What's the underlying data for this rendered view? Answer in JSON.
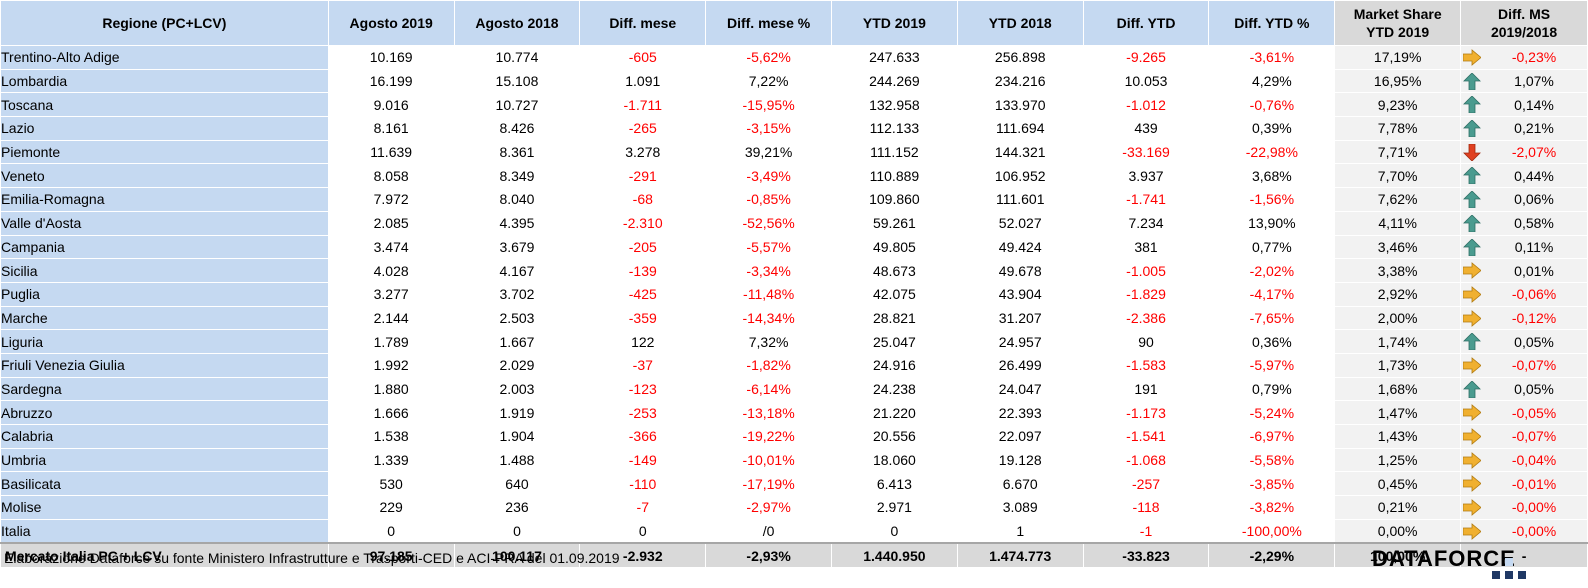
{
  "header": {
    "regione": "Regione (PC+LCV)",
    "agosto_2019": "Agosto 2019",
    "agosto_2018": "Agosto 2018",
    "diff_mese": "Diff. mese",
    "diff_mese_pct": "Diff. mese %",
    "ytd_2019": "YTD 2019",
    "ytd_2018": "YTD 2018",
    "diff_ytd": "Diff. YTD",
    "diff_ytd_pct": "Diff. YTD %",
    "market_share_line1": "Market Share",
    "market_share_line2": "YTD 2019",
    "diff_ms_line1": "Diff. MS",
    "diff_ms_line2": "2019/2018"
  },
  "rows": [
    {
      "region": "Trentino-Alto Adige",
      "ago19": "10.169",
      "ago18": "10.774",
      "diff_mese": "-605",
      "diff_mese_pct": "-5,62%",
      "ytd19": "247.633",
      "ytd18": "256.898",
      "diff_ytd": "-9.265",
      "diff_ytd_pct": "-3,61%",
      "ms": "17,19%",
      "arrow": "right",
      "diff_ms": "-0,23%"
    },
    {
      "region": "Lombardia",
      "ago19": "16.199",
      "ago18": "15.108",
      "diff_mese": "1.091",
      "diff_mese_pct": "7,22%",
      "ytd19": "244.269",
      "ytd18": "234.216",
      "diff_ytd": "10.053",
      "diff_ytd_pct": "4,29%",
      "ms": "16,95%",
      "arrow": "up",
      "diff_ms": "1,07%"
    },
    {
      "region": "Toscana",
      "ago19": "9.016",
      "ago18": "10.727",
      "diff_mese": "-1.711",
      "diff_mese_pct": "-15,95%",
      "ytd19": "132.958",
      "ytd18": "133.970",
      "diff_ytd": "-1.012",
      "diff_ytd_pct": "-0,76%",
      "ms": "9,23%",
      "arrow": "up",
      "diff_ms": "0,14%"
    },
    {
      "region": "Lazio",
      "ago19": "8.161",
      "ago18": "8.426",
      "diff_mese": "-265",
      "diff_mese_pct": "-3,15%",
      "ytd19": "112.133",
      "ytd18": "111.694",
      "diff_ytd": "439",
      "diff_ytd_pct": "0,39%",
      "ms": "7,78%",
      "arrow": "up",
      "diff_ms": "0,21%"
    },
    {
      "region": "Piemonte",
      "ago19": "11.639",
      "ago18": "8.361",
      "diff_mese": "3.278",
      "diff_mese_pct": "39,21%",
      "ytd19": "111.152",
      "ytd18": "144.321",
      "diff_ytd": "-33.169",
      "diff_ytd_pct": "-22,98%",
      "ms": "7,71%",
      "arrow": "down",
      "diff_ms": "-2,07%"
    },
    {
      "region": "Veneto",
      "ago19": "8.058",
      "ago18": "8.349",
      "diff_mese": "-291",
      "diff_mese_pct": "-3,49%",
      "ytd19": "110.889",
      "ytd18": "106.952",
      "diff_ytd": "3.937",
      "diff_ytd_pct": "3,68%",
      "ms": "7,70%",
      "arrow": "up",
      "diff_ms": "0,44%"
    },
    {
      "region": "Emilia-Romagna",
      "ago19": "7.972",
      "ago18": "8.040",
      "diff_mese": "-68",
      "diff_mese_pct": "-0,85%",
      "ytd19": "109.860",
      "ytd18": "111.601",
      "diff_ytd": "-1.741",
      "diff_ytd_pct": "-1,56%",
      "ms": "7,62%",
      "arrow": "up",
      "diff_ms": "0,06%"
    },
    {
      "region": "Valle d'Aosta",
      "ago19": "2.085",
      "ago18": "4.395",
      "diff_mese": "-2.310",
      "diff_mese_pct": "-52,56%",
      "ytd19": "59.261",
      "ytd18": "52.027",
      "diff_ytd": "7.234",
      "diff_ytd_pct": "13,90%",
      "ms": "4,11%",
      "arrow": "up",
      "diff_ms": "0,58%"
    },
    {
      "region": "Campania",
      "ago19": "3.474",
      "ago18": "3.679",
      "diff_mese": "-205",
      "diff_mese_pct": "-5,57%",
      "ytd19": "49.805",
      "ytd18": "49.424",
      "diff_ytd": "381",
      "diff_ytd_pct": "0,77%",
      "ms": "3,46%",
      "arrow": "up",
      "diff_ms": "0,11%"
    },
    {
      "region": "Sicilia",
      "ago19": "4.028",
      "ago18": "4.167",
      "diff_mese": "-139",
      "diff_mese_pct": "-3,34%",
      "ytd19": "48.673",
      "ytd18": "49.678",
      "diff_ytd": "-1.005",
      "diff_ytd_pct": "-2,02%",
      "ms": "3,38%",
      "arrow": "right",
      "diff_ms": "0,01%"
    },
    {
      "region": "Puglia",
      "ago19": "3.277",
      "ago18": "3.702",
      "diff_mese": "-425",
      "diff_mese_pct": "-11,48%",
      "ytd19": "42.075",
      "ytd18": "43.904",
      "diff_ytd": "-1.829",
      "diff_ytd_pct": "-4,17%",
      "ms": "2,92%",
      "arrow": "right",
      "diff_ms": "-0,06%"
    },
    {
      "region": "Marche",
      "ago19": "2.144",
      "ago18": "2.503",
      "diff_mese": "-359",
      "diff_mese_pct": "-14,34%",
      "ytd19": "28.821",
      "ytd18": "31.207",
      "diff_ytd": "-2.386",
      "diff_ytd_pct": "-7,65%",
      "ms": "2,00%",
      "arrow": "right",
      "diff_ms": "-0,12%"
    },
    {
      "region": "Liguria",
      "ago19": "1.789",
      "ago18": "1.667",
      "diff_mese": "122",
      "diff_mese_pct": "7,32%",
      "ytd19": "25.047",
      "ytd18": "24.957",
      "diff_ytd": "90",
      "diff_ytd_pct": "0,36%",
      "ms": "1,74%",
      "arrow": "up",
      "diff_ms": "0,05%"
    },
    {
      "region": "Friuli Venezia Giulia",
      "ago19": "1.992",
      "ago18": "2.029",
      "diff_mese": "-37",
      "diff_mese_pct": "-1,82%",
      "ytd19": "24.916",
      "ytd18": "26.499",
      "diff_ytd": "-1.583",
      "diff_ytd_pct": "-5,97%",
      "ms": "1,73%",
      "arrow": "right",
      "diff_ms": "-0,07%"
    },
    {
      "region": "Sardegna",
      "ago19": "1.880",
      "ago18": "2.003",
      "diff_mese": "-123",
      "diff_mese_pct": "-6,14%",
      "ytd19": "24.238",
      "ytd18": "24.047",
      "diff_ytd": "191",
      "diff_ytd_pct": "0,79%",
      "ms": "1,68%",
      "arrow": "up",
      "diff_ms": "0,05%"
    },
    {
      "region": "Abruzzo",
      "ago19": "1.666",
      "ago18": "1.919",
      "diff_mese": "-253",
      "diff_mese_pct": "-13,18%",
      "ytd19": "21.220",
      "ytd18": "22.393",
      "diff_ytd": "-1.173",
      "diff_ytd_pct": "-5,24%",
      "ms": "1,47%",
      "arrow": "right",
      "diff_ms": "-0,05%"
    },
    {
      "region": "Calabria",
      "ago19": "1.538",
      "ago18": "1.904",
      "diff_mese": "-366",
      "diff_mese_pct": "-19,22%",
      "ytd19": "20.556",
      "ytd18": "22.097",
      "diff_ytd": "-1.541",
      "diff_ytd_pct": "-6,97%",
      "ms": "1,43%",
      "arrow": "right",
      "diff_ms": "-0,07%"
    },
    {
      "region": "Umbria",
      "ago19": "1.339",
      "ago18": "1.488",
      "diff_mese": "-149",
      "diff_mese_pct": "-10,01%",
      "ytd19": "18.060",
      "ytd18": "19.128",
      "diff_ytd": "-1.068",
      "diff_ytd_pct": "-5,58%",
      "ms": "1,25%",
      "arrow": "right",
      "diff_ms": "-0,04%"
    },
    {
      "region": "Basilicata",
      "ago19": "530",
      "ago18": "640",
      "diff_mese": "-110",
      "diff_mese_pct": "-17,19%",
      "ytd19": "6.413",
      "ytd18": "6.670",
      "diff_ytd": "-257",
      "diff_ytd_pct": "-3,85%",
      "ms": "0,45%",
      "arrow": "right",
      "diff_ms": "-0,01%"
    },
    {
      "region": "Molise",
      "ago19": "229",
      "ago18": "236",
      "diff_mese": "-7",
      "diff_mese_pct": "-2,97%",
      "ytd19": "2.971",
      "ytd18": "3.089",
      "diff_ytd": "-118",
      "diff_ytd_pct": "-3,82%",
      "ms": "0,21%",
      "arrow": "right",
      "diff_ms": "-0,00%"
    },
    {
      "region": "Italia",
      "ago19": "0",
      "ago18": "0",
      "diff_mese": "0",
      "diff_mese_pct": "/0",
      "ytd19": "0",
      "ytd18": "1",
      "diff_ytd": "-1",
      "diff_ytd_pct": "-100,00%",
      "ms": "0,00%",
      "arrow": "right",
      "diff_ms": "-0,00%"
    }
  ],
  "total": {
    "region": "Mercato Italia PC + LCV",
    "ago19": "97.185",
    "ago18": "100.117",
    "diff_mese": "-2.932",
    "diff_mese_pct": "-2,93%",
    "ytd19": "1.440.950",
    "ytd18": "1.474.773",
    "diff_ytd": "-33.823",
    "diff_ytd_pct": "-2,29%",
    "ms": "100,00%",
    "diff_ms": "-"
  },
  "footer": {
    "source": "Elaborazione Dataforce su fonte Ministero Infrastrutture e Trasporti-CED e ACI-PRA del 01.09.2019"
  },
  "logo": {
    "text": "DATAFORCE"
  },
  "colors": {
    "header_bg": "#c5d9f1",
    "negative": "#ff0000",
    "arrow_up": "#4a9b8f",
    "arrow_down": "#e04020",
    "arrow_right": "#f0b030"
  }
}
